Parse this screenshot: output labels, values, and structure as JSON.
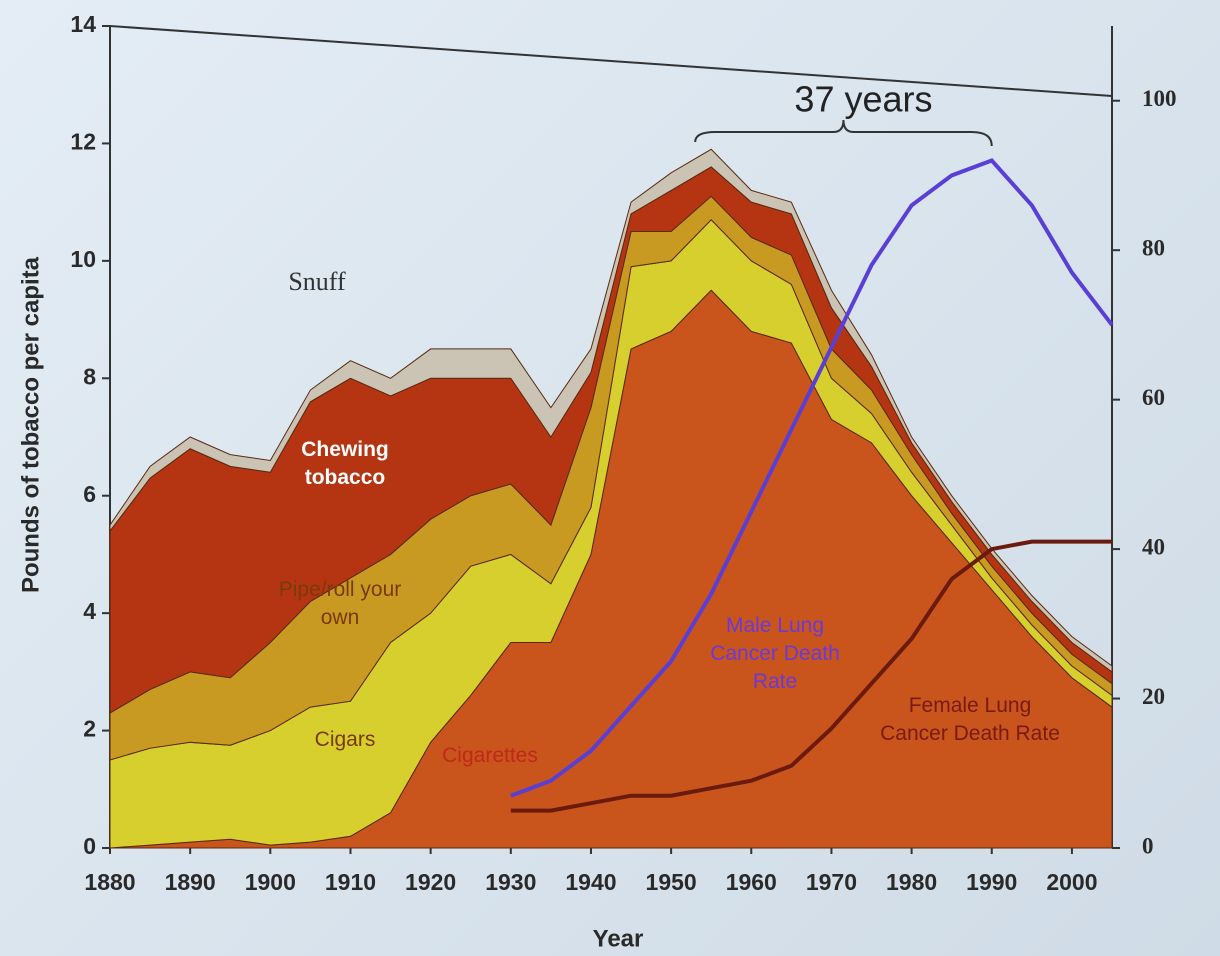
{
  "chart_data": {
    "type": "stacked-area",
    "y_label": "Pounds of tobacco per capita",
    "x_label": "Year",
    "annotations": [
      "37 years"
    ],
    "x": [
      1880,
      1885,
      1890,
      1895,
      1900,
      1905,
      1910,
      1915,
      1920,
      1925,
      1930,
      1935,
      1940,
      1945,
      1950,
      1955,
      1960,
      1965,
      1970,
      1975,
      1980,
      1985,
      1990,
      1995,
      2000,
      2005
    ],
    "series": [
      {
        "name": "Cigarettes",
        "color": "#c9541c",
        "values": [
          0,
          0.05,
          0.1,
          0.15,
          0.05,
          0.1,
          0.2,
          0.6,
          1.8,
          2.6,
          3.5,
          3.5,
          5.0,
          8.5,
          8.8,
          9.5,
          8.8,
          8.6,
          7.3,
          6.9,
          6.0,
          5.2,
          4.4,
          3.6,
          2.9,
          2.4
        ]
      },
      {
        "name": "Cigars",
        "color": "#d6cf2e",
        "values": [
          1.5,
          1.65,
          1.7,
          1.6,
          1.95,
          2.3,
          2.3,
          2.9,
          2.2,
          2.2,
          1.5,
          1.0,
          0.8,
          1.4,
          1.2,
          1.2,
          1.2,
          1.0,
          0.7,
          0.5,
          0.4,
          0.3,
          0.2,
          0.2,
          0.2,
          0.2
        ]
      },
      {
        "name": "Pipe/roll your own",
        "color": "#c99a22",
        "values": [
          0.8,
          1.0,
          1.2,
          1.15,
          1.5,
          1.8,
          2.1,
          1.5,
          1.6,
          1.2,
          1.2,
          1.0,
          1.7,
          0.6,
          0.5,
          0.4,
          0.4,
          0.5,
          0.5,
          0.4,
          0.3,
          0.2,
          0.2,
          0.2,
          0.2,
          0.2
        ]
      },
      {
        "name": "Chewing tobacco",
        "color": "#b53512",
        "values": [
          3.1,
          3.6,
          3.8,
          3.6,
          2.9,
          3.4,
          3.4,
          2.7,
          2.4,
          2.0,
          1.8,
          1.5,
          0.6,
          0.3,
          0.7,
          0.5,
          0.6,
          0.7,
          0.7,
          0.4,
          0.2,
          0.2,
          0.2,
          0.2,
          0.2,
          0.2
        ]
      },
      {
        "name": "Snuff",
        "color": "#cbc4b4",
        "values": [
          0.1,
          0.2,
          0.2,
          0.2,
          0.2,
          0.2,
          0.3,
          0.3,
          0.5,
          0.5,
          0.5,
          0.5,
          0.4,
          0.2,
          0.3,
          0.3,
          0.2,
          0.2,
          0.3,
          0.2,
          0.1,
          0.1,
          0.1,
          0.1,
          0.1,
          0.1
        ]
      }
    ],
    "lines": [
      {
        "name": "Male Lung Cancer Death Rate",
        "color": "#5a3fd6",
        "axis": "y2",
        "x": [
          1930,
          1935,
          1940,
          1945,
          1950,
          1955,
          1960,
          1965,
          1970,
          1975,
          1980,
          1985,
          1990,
          1995,
          2000,
          2005
        ],
        "values": [
          7,
          9,
          13,
          19,
          25,
          34,
          45,
          56,
          67,
          78,
          86,
          90,
          92,
          86,
          77,
          70
        ]
      },
      {
        "name": "Female Lung Cancer Death Rate",
        "color": "#6b1a0e",
        "axis": "y2",
        "x": [
          1930,
          1935,
          1940,
          1945,
          1950,
          1955,
          1960,
          1965,
          1970,
          1975,
          1980,
          1985,
          1990,
          1995,
          2000,
          2005
        ],
        "values": [
          5,
          5,
          6,
          7,
          7,
          8,
          9,
          11,
          16,
          22,
          28,
          36,
          40,
          41,
          41,
          41
        ]
      }
    ],
    "xlim": [
      1880,
      2005
    ],
    "xticks": [
      1880,
      1890,
      1900,
      1910,
      1920,
      1930,
      1940,
      1950,
      1960,
      1970,
      1980,
      1990,
      2000
    ],
    "ylim": [
      0,
      14
    ],
    "yticks": [
      0,
      2,
      4,
      6,
      8,
      10,
      12,
      14
    ],
    "y2lim": [
      0,
      110
    ],
    "y2ticks": [
      0,
      20,
      40,
      60,
      80,
      100
    ]
  }
}
